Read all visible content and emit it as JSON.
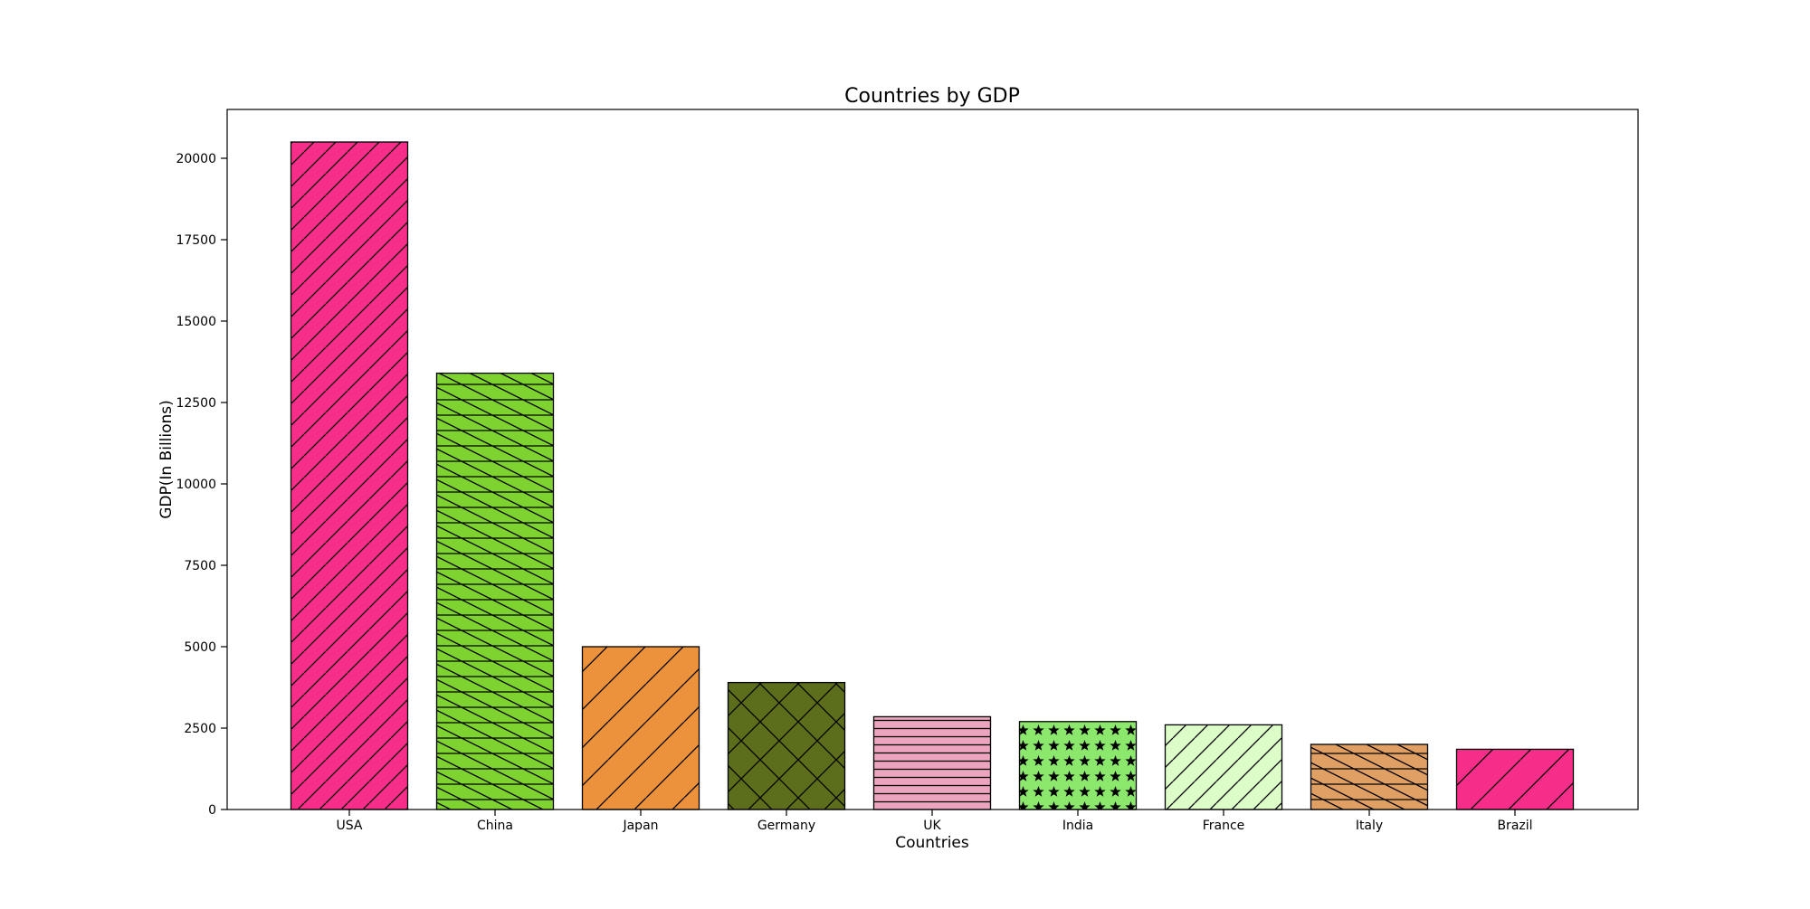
{
  "chart_data": {
    "type": "bar",
    "title": "Countries by GDP",
    "xlabel": "Countries",
    "ylabel": "GDP(In Billions)",
    "categories": [
      "USA",
      "China",
      "Japan",
      "Germany",
      "UK",
      "India",
      "France",
      "Italy",
      "Brazil"
    ],
    "values": [
      20500,
      13400,
      5000,
      3900,
      2850,
      2700,
      2600,
      2000,
      1850
    ],
    "ylim": [
      0,
      21500
    ],
    "yticks": [
      0,
      2500,
      5000,
      7500,
      10000,
      12500,
      15000,
      17500,
      20000
    ],
    "bar_colors": [
      "#f72d8a",
      "#7ed330",
      "#ed923c",
      "#5c6e1c",
      "#eda4be",
      "#8ce86c",
      "#dcfcc8",
      "#e0a064",
      "#f72d8a"
    ],
    "hatches": [
      "diag-up",
      "horiz-diag-down",
      "diag-up-wide",
      "cross",
      "horiz",
      "stars",
      "diag-up",
      "horiz-diag-down",
      "diag-up-wide"
    ],
    "grid": false,
    "legend": "none"
  }
}
